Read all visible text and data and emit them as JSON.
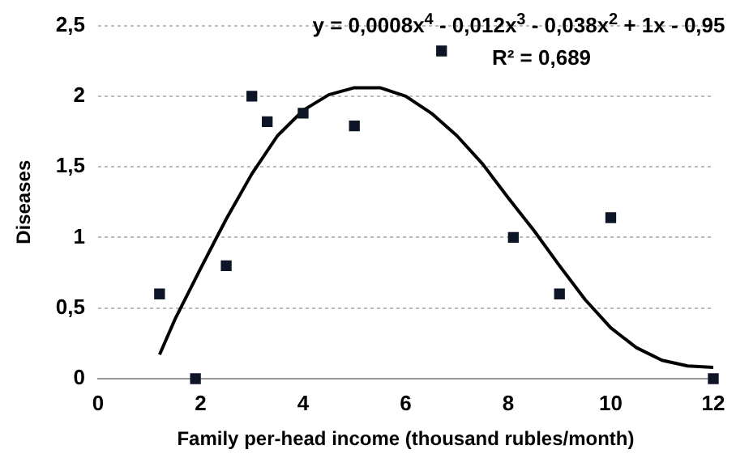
{
  "chart_data": {
    "type": "scatter",
    "xlabel": "Family per-head income (thousand rubles/month)",
    "ylabel": "Diseases",
    "xlim": [
      0,
      12
    ],
    "xticks": [
      0,
      2,
      4,
      6,
      8,
      10,
      12
    ],
    "ylim": [
      0,
      2.5
    ],
    "yticks": [
      0,
      {
        "value": 0.5,
        "label": "0,5"
      },
      1,
      {
        "value": 1.5,
        "label": "1,5"
      },
      2,
      {
        "value": 2.5,
        "label": "2,5"
      }
    ],
    "grid": "y",
    "marker": "square",
    "legend": false,
    "series": [
      {
        "type": "scatter",
        "color": "#0d1626",
        "x": [
          1.2,
          1.9,
          2.5,
          3.0,
          3.3,
          4.0,
          5.0,
          6.7,
          8.1,
          9.0,
          10.0,
          12.0
        ],
        "values": [
          0.6,
          0,
          0.8,
          2.0,
          1.82,
          1.88,
          1.79,
          2.32,
          1.0,
          0.6,
          1.14,
          0
        ]
      },
      {
        "type": "line",
        "color": "#000000",
        "marker": "none",
        "x": [
          1.2,
          1.5,
          2,
          2.5,
          3,
          3.5,
          4,
          4.5,
          5,
          5.5,
          6,
          6.5,
          7,
          7.5,
          8,
          8.5,
          9,
          9.5,
          10,
          10.5,
          11,
          11.5,
          12
        ],
        "values": [
          0.17,
          0.42,
          0.78,
          1.13,
          1.45,
          1.72,
          1.9,
          2.01,
          2.06,
          2.06,
          2.0,
          1.88,
          1.72,
          1.52,
          1.28,
          1.05,
          0.8,
          0.56,
          0.36,
          0.22,
          0.13,
          0.09,
          0.08
        ]
      }
    ],
    "annotations": [
      "y = 0,0008x$^{4}$ - 0,012x$^{3}$ - 0,038x$^{2}$ + 1x - 0,95",
      "R² = 0,689"
    ]
  }
}
